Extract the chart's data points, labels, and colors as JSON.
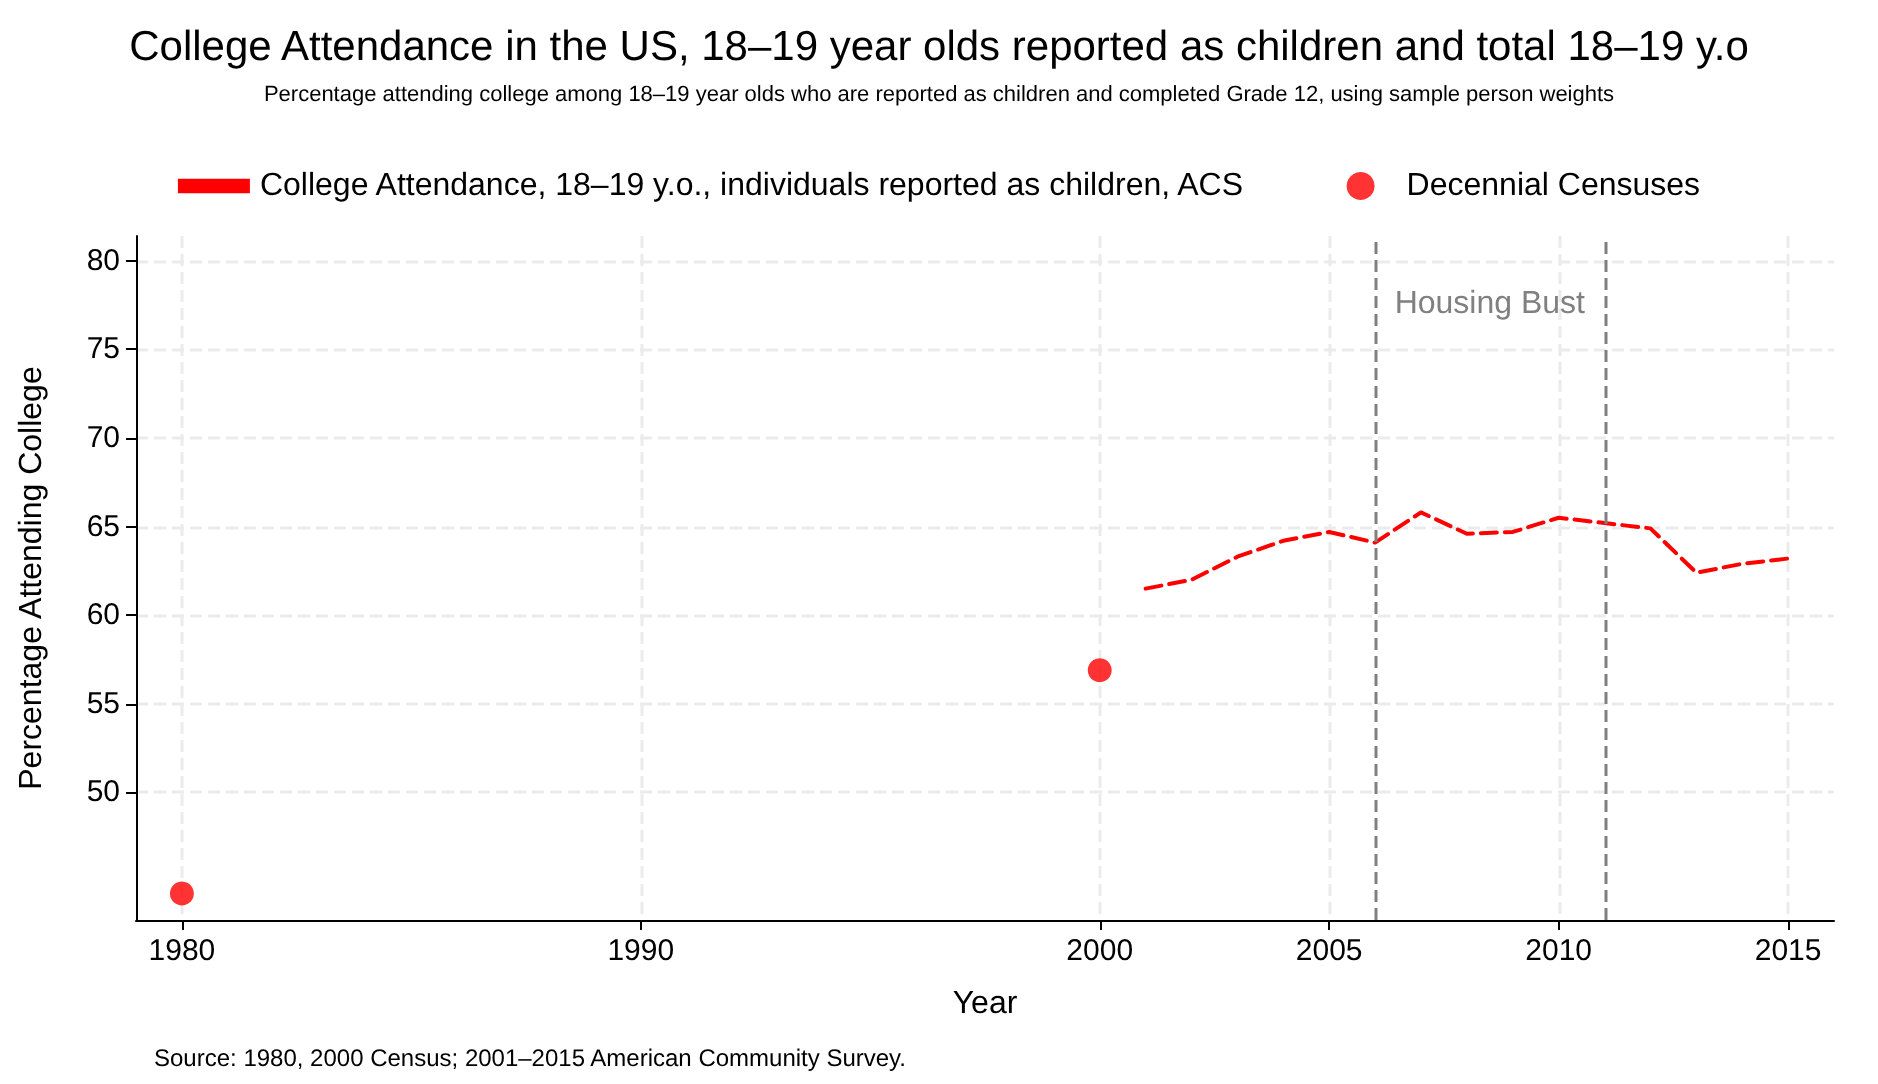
{
  "chart_data": {
    "type": "line",
    "title": "College Attendance in the US, 18–19 year olds reported as children and total 18–19 y.o",
    "subtitle": "Percentage attending college among 18–19 year olds who are reported as children and completed Grade 12, using sample person weights",
    "xlabel": "Year",
    "ylabel": "Percentage Attending College",
    "series": [
      {
        "name": "College Attendance, 18–19 y.o., individuals reported as children, ACS",
        "color": "#ff0000",
        "line_style": "dashed",
        "marker": "none",
        "x": [
          2001,
          2002,
          2003,
          2004,
          2005,
          2006,
          2007,
          2008,
          2009,
          2010,
          2011,
          2012,
          2013,
          2014,
          2015
        ],
        "values": [
          61.5,
          62.0,
          63.3,
          64.2,
          64.7,
          64.1,
          65.8,
          64.6,
          64.7,
          65.5,
          65.2,
          64.9,
          62.4,
          62.9,
          63.2
        ]
      },
      {
        "name": "Decennial Censuses",
        "type": "scatter",
        "color": "#ff0000",
        "marker": "circle",
        "x": [
          1980,
          2000
        ],
        "values": [
          44.3,
          56.9
        ]
      }
    ],
    "xlim": [
      1979,
      2016
    ],
    "xticks": [
      1980,
      1990,
      2000,
      2005,
      2010,
      2015
    ],
    "ylim": [
      42.8,
      81.4
    ],
    "yticks": [
      50,
      55,
      60,
      65,
      70,
      75,
      80
    ],
    "grid": true,
    "legend": "top",
    "ref_lines": [
      {
        "axis": "x",
        "value": 2006,
        "color": "#808080",
        "line_style": "dashed"
      },
      {
        "axis": "x",
        "value": 2011,
        "color": "#808080",
        "line_style": "dashed"
      }
    ],
    "annotations": [
      "Housing Bust",
      "Source: 1980, 2000 Census; 2001–2015 American Community Survey."
    ]
  }
}
